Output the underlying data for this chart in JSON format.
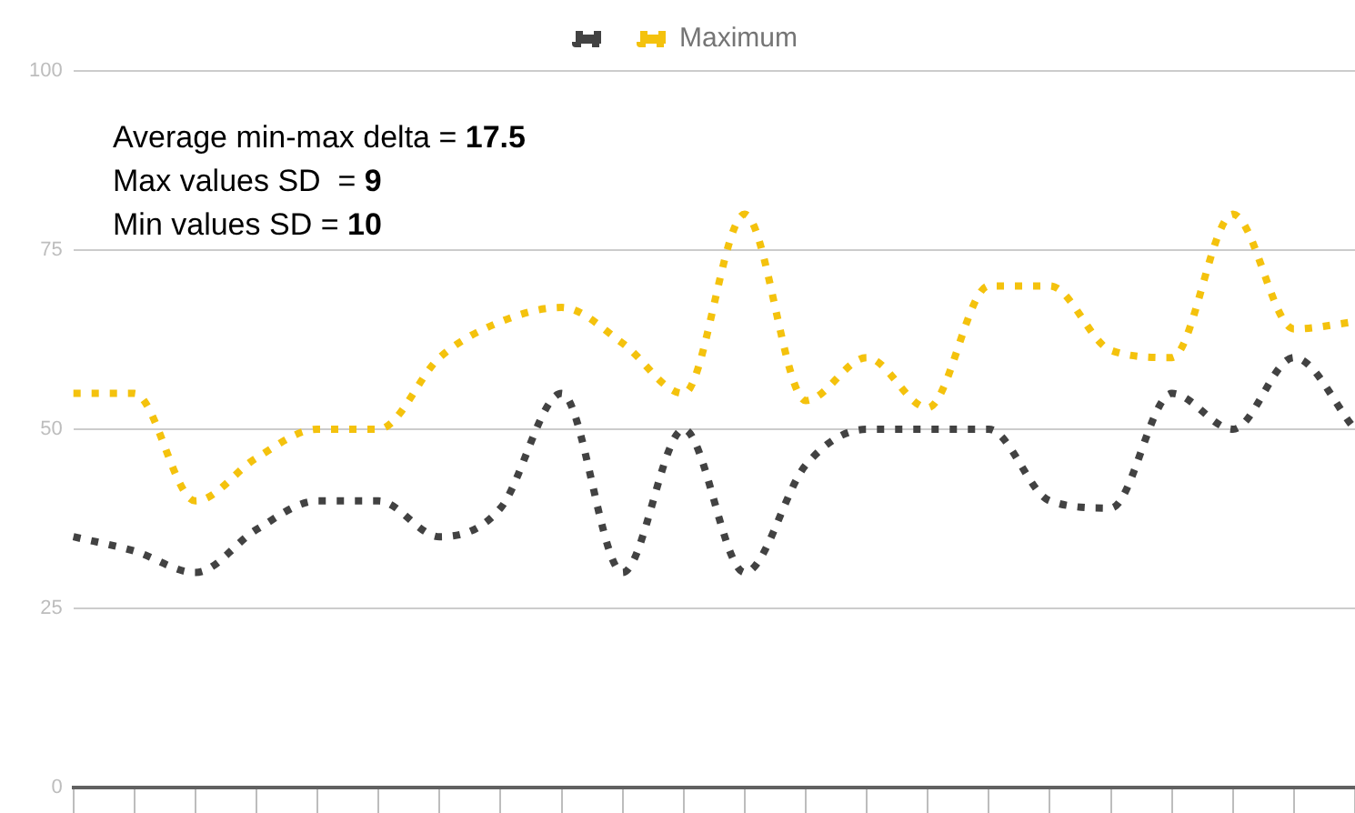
{
  "chart_data": {
    "type": "line",
    "categories": [
      null,
      null,
      null,
      null,
      null,
      null,
      null,
      null,
      null,
      null,
      null,
      null,
      null,
      null,
      null,
      null,
      null,
      null,
      null,
      null,
      null,
      null
    ],
    "series": [
      {
        "color": "#424242",
        "values": [
          35,
          33,
          30,
          36,
          40,
          40,
          35,
          39,
          55,
          30,
          50,
          30,
          45,
          50,
          50,
          50,
          40,
          39,
          55,
          50,
          60,
          50
        ]
      },
      {
        "name": "Maximum",
        "color": "#f4c20d",
        "values": [
          55,
          55,
          40,
          46,
          50,
          50,
          60,
          65,
          67,
          62,
          55,
          80,
          54,
          60,
          53,
          70,
          70,
          61,
          60,
          80,
          64,
          65
        ]
      }
    ],
    "ylim": [
      0,
      100
    ],
    "yticks": [
      0,
      25,
      50,
      75,
      100
    ],
    "grid": "y",
    "legend": "top",
    "tick_labels": "y",
    "marker": "none",
    "line_style": "dotted",
    "annotations": [
      "Average min-max delta = 17.5",
      "Max values SD  = 9",
      "Min values SD = 10"
    ]
  }
}
